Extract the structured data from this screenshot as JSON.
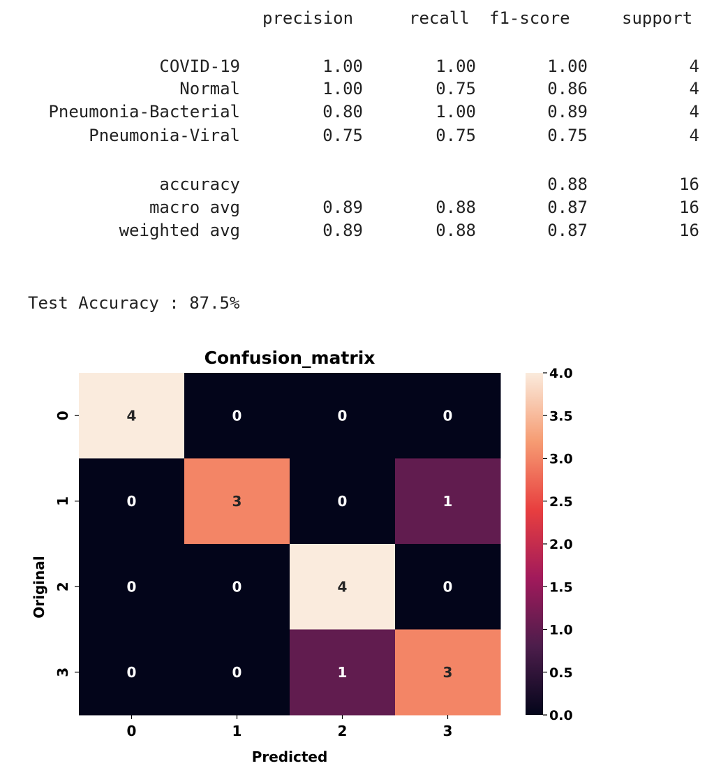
{
  "report": {
    "headers": [
      "precision",
      "recall",
      "f1-score",
      "support"
    ],
    "rows": [
      {
        "label": "COVID-19",
        "precision": "1.00",
        "recall": "1.00",
        "f1": "1.00",
        "support": "4"
      },
      {
        "label": "Normal",
        "precision": "1.00",
        "recall": "0.75",
        "f1": "0.86",
        "support": "4"
      },
      {
        "label": "Pneumonia-Bacterial",
        "precision": "0.80",
        "recall": "1.00",
        "f1": "0.89",
        "support": "4"
      },
      {
        "label": "Pneumonia-Viral",
        "precision": "0.75",
        "recall": "0.75",
        "f1": "0.75",
        "support": "4"
      }
    ],
    "summary": [
      {
        "label": "accuracy",
        "precision": "",
        "recall": "",
        "f1": "0.88",
        "support": "16"
      },
      {
        "label": "macro avg",
        "precision": "0.89",
        "recall": "0.88",
        "f1": "0.87",
        "support": "16"
      },
      {
        "label": "weighted avg",
        "precision": "0.89",
        "recall": "0.88",
        "f1": "0.87",
        "support": "16"
      }
    ],
    "test_accuracy": "Test Accuracy : 87.5%"
  },
  "chart_data": {
    "type": "heatmap",
    "title": "Confusion_matrix",
    "xlabel": "Predicted",
    "ylabel": "Original",
    "x_categories": [
      "0",
      "1",
      "2",
      "3"
    ],
    "y_categories": [
      "0",
      "1",
      "2",
      "3"
    ],
    "values": [
      [
        4,
        0,
        0,
        0
      ],
      [
        0,
        3,
        0,
        1
      ],
      [
        0,
        0,
        4,
        0
      ],
      [
        0,
        0,
        1,
        3
      ]
    ],
    "colorbar": {
      "range": [
        0,
        4
      ],
      "ticks": [
        "0.0",
        "0.5",
        "1.0",
        "1.5",
        "2.0",
        "2.5",
        "3.0",
        "3.5",
        "4.0"
      ]
    },
    "colormap": [
      "#03051a",
      "#4c1d4b",
      "#a11a5b",
      "#e83f3f",
      "#f69c73",
      "#faebdd"
    ]
  }
}
